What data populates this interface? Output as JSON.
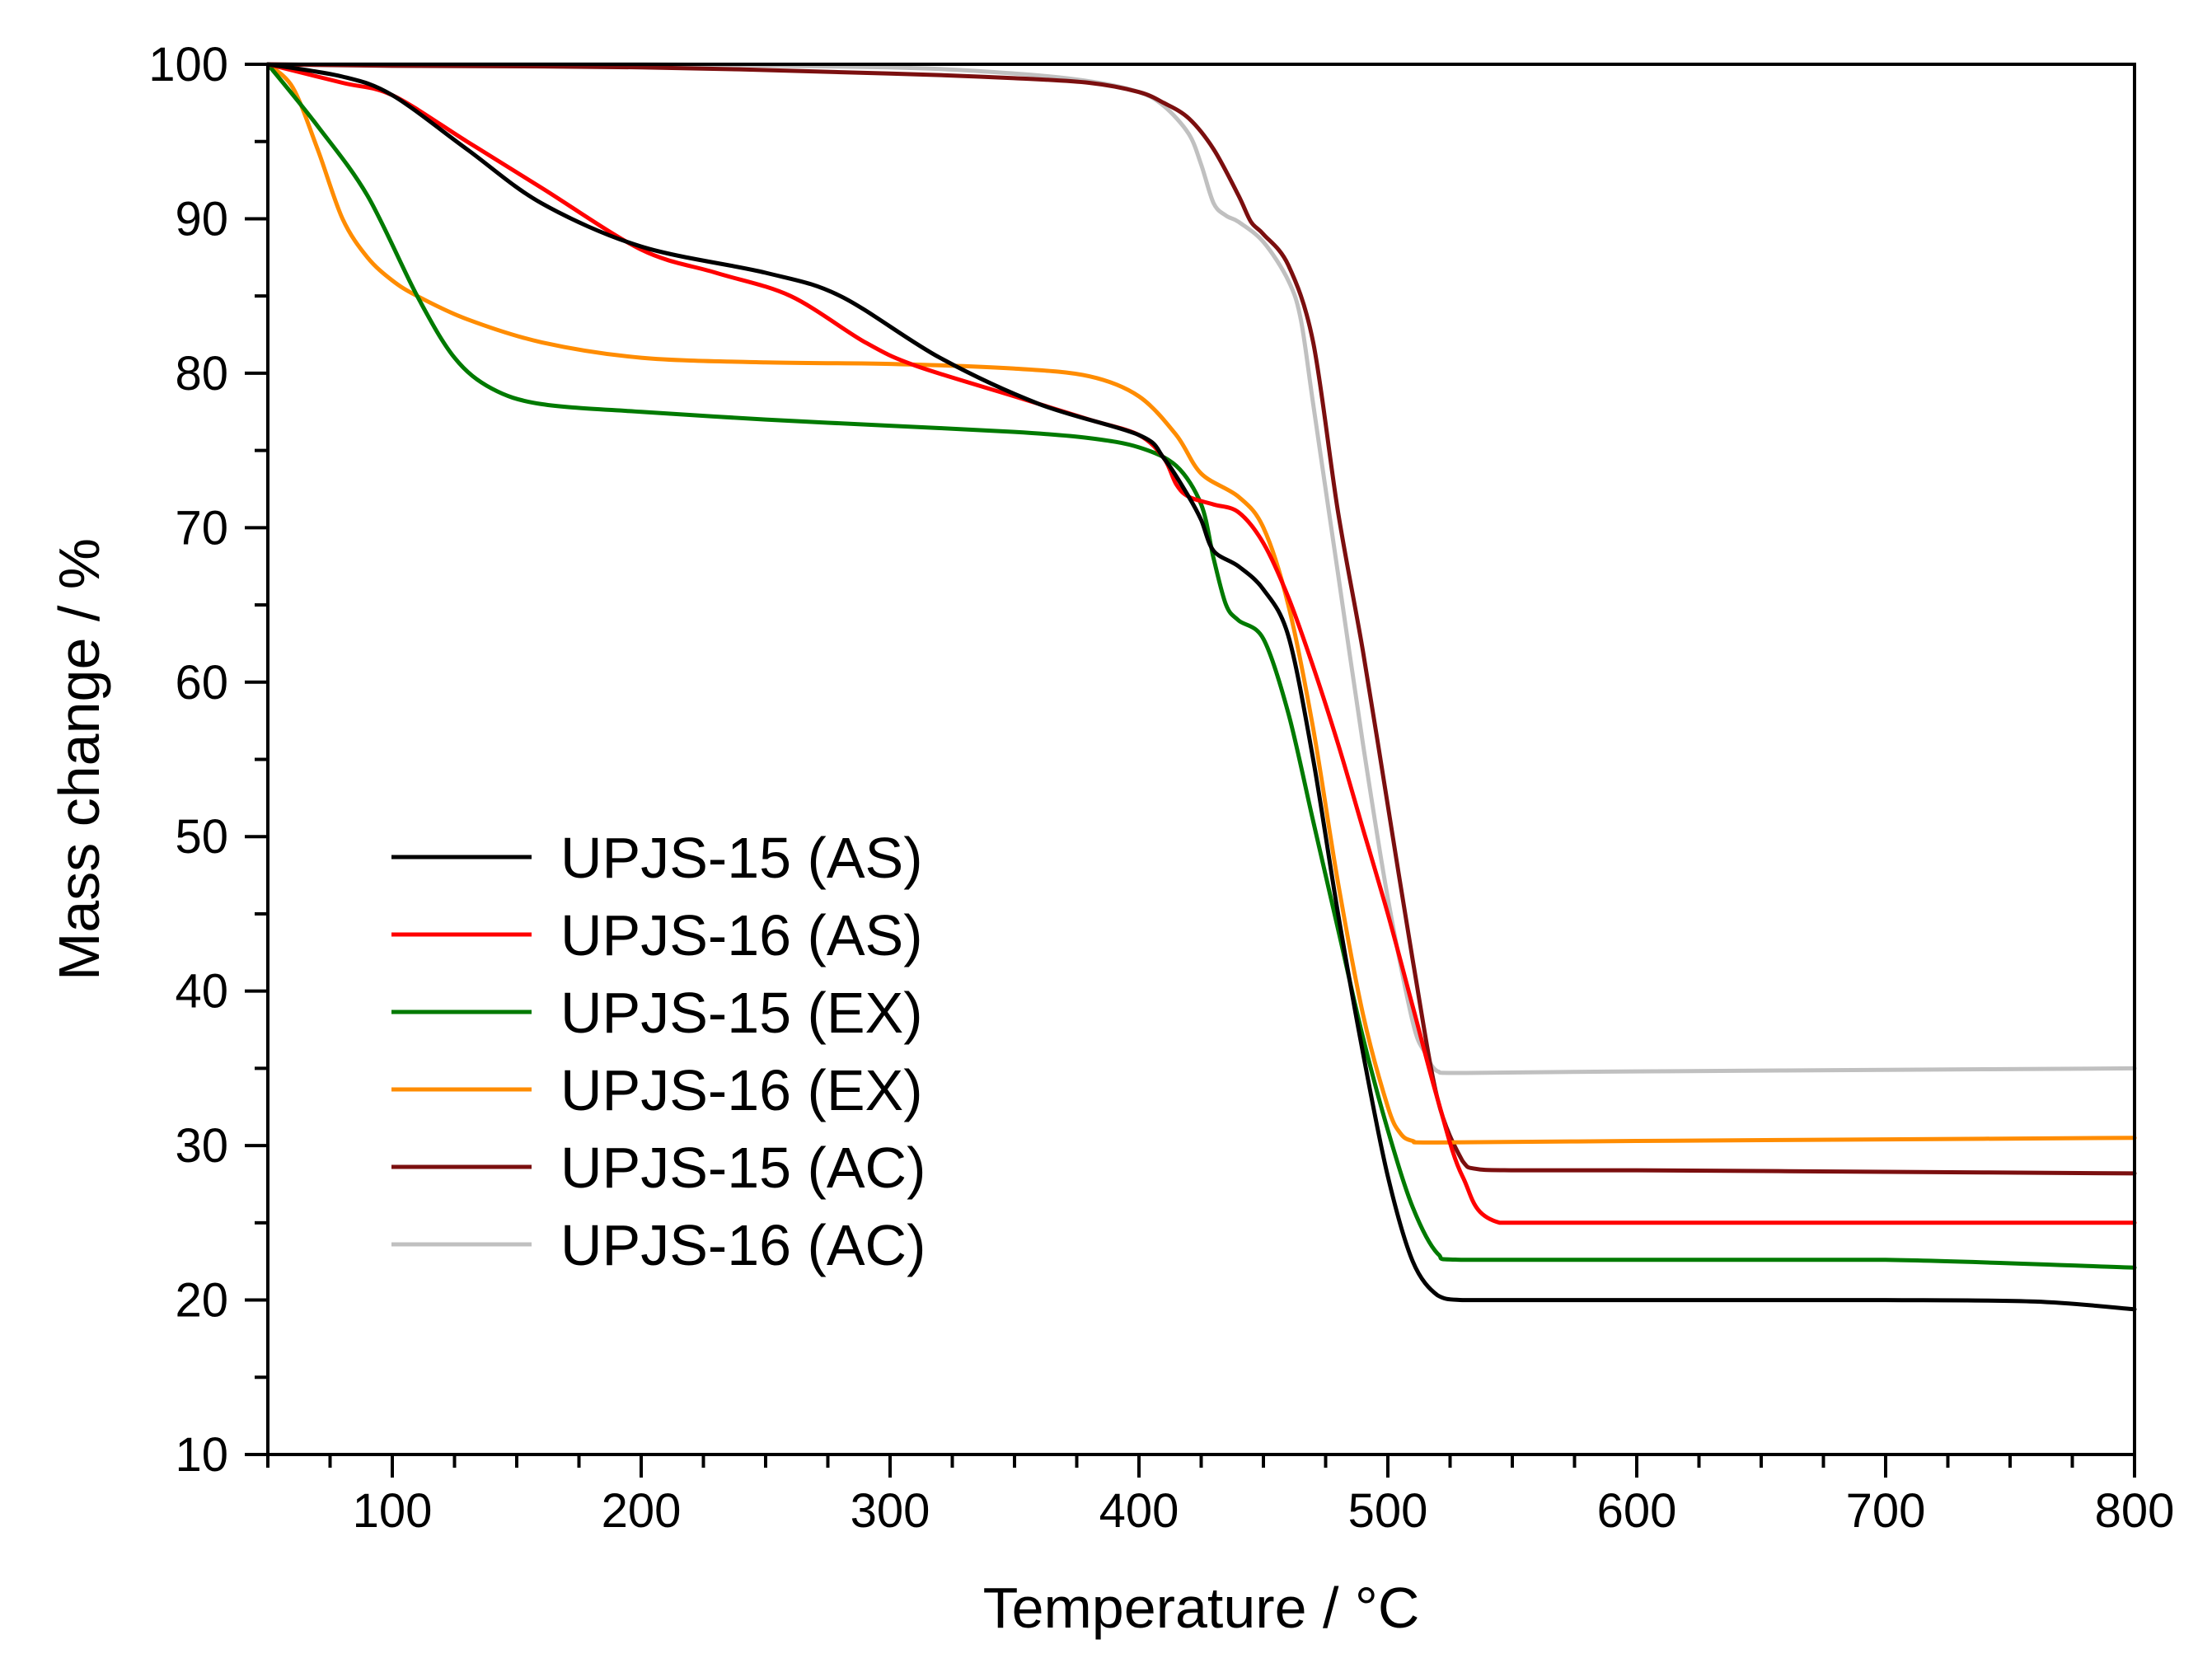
{
  "chart_data": {
    "type": "line",
    "title": "",
    "xlabel": "Temperature / °C",
    "ylabel": "Mass change / %",
    "xlim": [
      50,
      800
    ],
    "ylim": [
      10,
      100
    ],
    "xticks": [
      100,
      200,
      300,
      400,
      500,
      600,
      700,
      800
    ],
    "yticks": [
      10,
      20,
      30,
      40,
      50,
      60,
      70,
      80,
      90,
      100
    ],
    "xtick_labels": [
      "100",
      "200",
      "300",
      "400",
      "500",
      "600",
      "700",
      "800"
    ],
    "ytick_labels": [
      "10",
      "20",
      "30",
      "40",
      "50",
      "60",
      "70",
      "80",
      "90",
      "100"
    ],
    "grid": false,
    "legend_position": "bottom-left",
    "series": [
      {
        "name": "UPJS-15 (AS)",
        "color": "#000000",
        "x": [
          50,
          80,
          100,
          130,
          160,
          200,
          250,
          280,
          320,
          360,
          400,
          410,
          420,
          425,
          430,
          440,
          450,
          460,
          470,
          480,
          490,
          500,
          510,
          520,
          530,
          550,
          600,
          700,
          760,
          800
        ],
        "y": [
          100,
          99.2,
          98,
          94.5,
          91,
          88.2,
          86.5,
          85,
          81,
          78,
          76,
          74.5,
          72,
          70.5,
          68.5,
          67.5,
          66,
          63,
          55,
          45,
          36,
          28,
          22.5,
          20.3,
          20,
          20,
          20,
          20,
          19.9,
          19.4
        ]
      },
      {
        "name": "UPJS-16 (AS)",
        "color": "#ff0000",
        "x": [
          50,
          80,
          100,
          130,
          160,
          200,
          230,
          260,
          290,
          310,
          350,
          380,
          400,
          410,
          415,
          420,
          430,
          440,
          450,
          460,
          470,
          480,
          490,
          500,
          510,
          520,
          530,
          545,
          600,
          700,
          800
        ],
        "y": [
          100,
          98.8,
          98,
          95,
          92,
          88,
          86.5,
          85,
          82,
          80.5,
          78.5,
          77,
          76,
          74.5,
          72.8,
          72,
          71.5,
          71,
          69,
          65.5,
          61,
          56,
          50.5,
          45,
          39,
          33,
          28,
          25,
          25,
          25,
          25
        ]
      },
      {
        "name": "UPJS-15 (EX)",
        "color": "#007a00",
        "x": [
          50,
          70,
          90,
          110,
          125,
          140,
          160,
          200,
          250,
          300,
          350,
          380,
          400,
          415,
          425,
          430,
          435,
          440,
          450,
          460,
          470,
          480,
          490,
          500,
          510,
          520,
          530,
          600,
          700,
          800
        ],
        "y": [
          100,
          96,
          91.5,
          85,
          81,
          79,
          78,
          77.5,
          77,
          76.6,
          76.2,
          75.8,
          75.2,
          74,
          71.5,
          68,
          65,
          64,
          62.8,
          58,
          51,
          44,
          37,
          31,
          26,
          23,
          22.6,
          22.6,
          22.6,
          22.1
        ]
      },
      {
        "name": "UPJS-16 (EX)",
        "color": "#ff8c00",
        "x": [
          50,
          60,
          70,
          80,
          90,
          100,
          110,
          130,
          160,
          200,
          250,
          300,
          350,
          380,
          400,
          415,
          425,
          440,
          450,
          460,
          470,
          480,
          490,
          500,
          505,
          510,
          520,
          600,
          700,
          800
        ],
        "y": [
          100,
          98.5,
          94.5,
          90,
          87.5,
          86,
          85,
          83.5,
          82,
          81,
          80.7,
          80.6,
          80.3,
          79.8,
          78.5,
          76,
          73.5,
          72,
          70,
          65,
          57,
          47,
          38.5,
          32.5,
          30.8,
          30.3,
          30.2,
          30.3,
          30.4,
          30.5
        ]
      },
      {
        "name": "UPJS-15 (AC)",
        "color": "#7b0f0f",
        "x": [
          50,
          100,
          200,
          300,
          350,
          380,
          400,
          410,
          420,
          430,
          440,
          445,
          450,
          460,
          470,
          480,
          490,
          500,
          510,
          520,
          530,
          535,
          550,
          600,
          700,
          800
        ],
        "y": [
          100,
          99.9,
          99.8,
          99.4,
          99.1,
          98.8,
          98.2,
          97.5,
          96.5,
          94.5,
          91.5,
          89.8,
          89,
          87,
          82,
          71,
          62,
          52,
          42,
          33,
          29,
          28.5,
          28.4,
          28.4,
          28.3,
          28.2
        ]
      },
      {
        "name": "UPJS-16 (AC)",
        "color": "#c0c0c0",
        "x": [
          50,
          100,
          200,
          300,
          350,
          380,
          400,
          410,
          420,
          425,
          430,
          435,
          440,
          450,
          460,
          465,
          470,
          480,
          490,
          500,
          510,
          515,
          520,
          530,
          600,
          700,
          800
        ],
        "y": [
          100,
          100,
          100,
          99.8,
          99.4,
          98.9,
          98.2,
          97.3,
          95.5,
          93.5,
          91,
          90.2,
          89.8,
          88.5,
          86,
          83.5,
          78,
          67,
          56,
          46,
          38,
          36,
          34.8,
          34.7,
          34.8,
          34.9,
          35
        ]
      }
    ]
  }
}
